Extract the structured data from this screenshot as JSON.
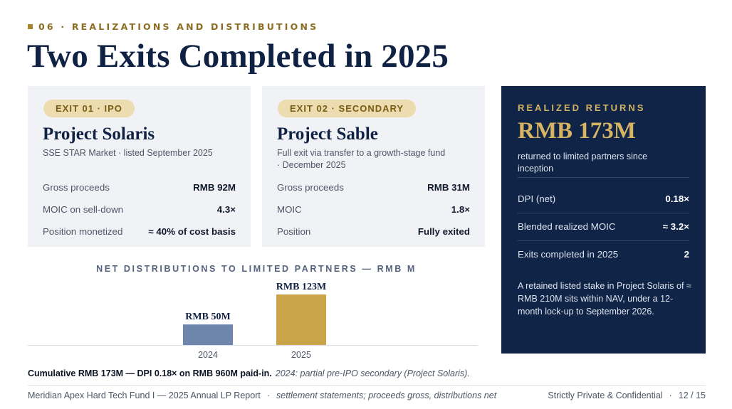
{
  "header": {
    "eyebrow": "06 · REALIZATIONS AND DISTRIBUTIONS",
    "title": "Two Exits Completed in 2025"
  },
  "exits": [
    {
      "pill": "EXIT 01 · IPO",
      "name": "Project Solaris",
      "subtitle": "SSE STAR Market · listed September 2025",
      "rows": [
        {
          "label": "Gross proceeds",
          "value": "RMB 92M"
        },
        {
          "label": "MOIC on sell-down",
          "value": "4.3×"
        },
        {
          "label": "Position monetized",
          "value": "≈ 40% of cost basis"
        }
      ]
    },
    {
      "pill": "EXIT 02 · SECONDARY",
      "name": "Project Sable",
      "subtitle": "Full exit via transfer to a growth-stage fund · December 2025",
      "rows": [
        {
          "label": "Gross proceeds",
          "value": "RMB 31M"
        },
        {
          "label": "MOIC",
          "value": "1.8×"
        },
        {
          "label": "Position",
          "value": "Fully exited"
        }
      ]
    }
  ],
  "realized": {
    "label": "REALIZED RETURNS",
    "amount": "RMB 173M",
    "subtitle": "returned to limited partners since inception",
    "rows": [
      {
        "label": "DPI (net)",
        "value": "0.18×"
      },
      {
        "label": "Blended realized MOIC",
        "value": "≈ 3.2×"
      },
      {
        "label": "Exits completed in 2025",
        "value": "2"
      }
    ],
    "note": "A retained listed stake in Project Solaris of ≈ RMB 210M sits within NAV, under a 12-month lock-up to September 2026."
  },
  "chart_data": {
    "type": "bar",
    "title": "NET DISTRIBUTIONS TO LIMITED PARTNERS — RMB M",
    "categories": [
      "2024",
      "2025"
    ],
    "values": [
      50,
      123
    ],
    "data_labels": [
      "RMB 50M",
      "RMB 123M"
    ],
    "colors": [
      "#6e86ab",
      "#c9a449"
    ],
    "ylim": [
      0,
      123
    ],
    "grid": false
  },
  "footnote": {
    "bold": "Cumulative RMB 173M — DPI 0.18× on RMB 960M paid-in.",
    "italic": "2024: partial pre-IPO secondary (Project Solaris)."
  },
  "footer": {
    "left": "Meridian Apex Hard Tech Fund I — 2025 Annual LP Report",
    "separator": "·",
    "left_italic": "settlement statements; proceeds gross, distributions net",
    "right": "Strictly Private & Confidential",
    "page": "12 / 15"
  }
}
